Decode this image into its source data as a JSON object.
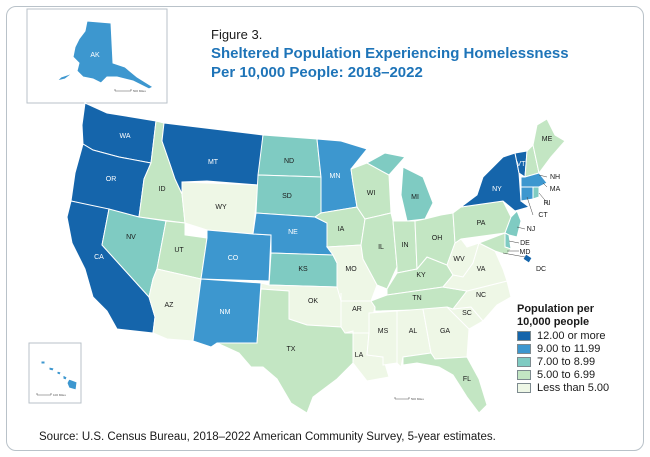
{
  "figure_label": "Figure 3.",
  "title_line1": "Sheltered Population Experiencing Homelessness",
  "title_line2": "Per 10,000 People: 2018–2022",
  "source": "Source: U.S. Census Bureau, 2018–2022 American Community Survey, 5-year estimates.",
  "legend": {
    "title_line1": "Population per",
    "title_line2": "10,000 people",
    "items": [
      {
        "label": "12.00 or more",
        "color": "#1565ab"
      },
      {
        "label": "9.00 to 11.99",
        "color": "#3d97cf"
      },
      {
        "label": "7.00 to 8.99",
        "color": "#7fcbc2"
      },
      {
        "label": "5.00 to 6.99",
        "color": "#c3e6c3"
      },
      {
        "label": "Less than 5.00",
        "color": "#eef7e6"
      }
    ]
  },
  "scale_labels": {
    "alaska": "500 Miles",
    "hawaii": "100 Miles",
    "conus": "500 Miles"
  },
  "states": [
    {
      "abbr": "AK",
      "category": 1
    },
    {
      "abbr": "HI",
      "category": 1
    },
    {
      "abbr": "WA",
      "category": 0
    },
    {
      "abbr": "OR",
      "category": 0
    },
    {
      "abbr": "CA",
      "category": 0
    },
    {
      "abbr": "ID",
      "category": 3
    },
    {
      "abbr": "NV",
      "category": 2
    },
    {
      "abbr": "UT",
      "category": 3
    },
    {
      "abbr": "AZ",
      "category": 4
    },
    {
      "abbr": "MT",
      "category": 0
    },
    {
      "abbr": "WY",
      "category": 4
    },
    {
      "abbr": "CO",
      "category": 1
    },
    {
      "abbr": "NM",
      "category": 1
    },
    {
      "abbr": "ND",
      "category": 2
    },
    {
      "abbr": "SD",
      "category": 2
    },
    {
      "abbr": "NE",
      "category": 1
    },
    {
      "abbr": "KS",
      "category": 2
    },
    {
      "abbr": "OK",
      "category": 4
    },
    {
      "abbr": "TX",
      "category": 3
    },
    {
      "abbr": "MN",
      "category": 1
    },
    {
      "abbr": "IA",
      "category": 3
    },
    {
      "abbr": "MO",
      "category": 4
    },
    {
      "abbr": "AR",
      "category": 4
    },
    {
      "abbr": "LA",
      "category": 4
    },
    {
      "abbr": "WI",
      "category": 3
    },
    {
      "abbr": "IL",
      "category": 3
    },
    {
      "abbr": "MS",
      "category": 4
    },
    {
      "abbr": "MI",
      "category": 2
    },
    {
      "abbr": "IN",
      "category": 3
    },
    {
      "abbr": "KY",
      "category": 3
    },
    {
      "abbr": "TN",
      "category": 3
    },
    {
      "abbr": "AL",
      "category": 4
    },
    {
      "abbr": "OH",
      "category": 3
    },
    {
      "abbr": "WV",
      "category": 4
    },
    {
      "abbr": "GA",
      "category": 4
    },
    {
      "abbr": "FL",
      "category": 3
    },
    {
      "abbr": "SC",
      "category": 4
    },
    {
      "abbr": "NC",
      "category": 4
    },
    {
      "abbr": "VA",
      "category": 4
    },
    {
      "abbr": "PA",
      "category": 3
    },
    {
      "abbr": "NY",
      "category": 0
    },
    {
      "abbr": "VT",
      "category": 0
    },
    {
      "abbr": "NH",
      "category": 3
    },
    {
      "abbr": "ME",
      "category": 3
    },
    {
      "abbr": "MA",
      "category": 1
    },
    {
      "abbr": "CT",
      "category": 1
    },
    {
      "abbr": "RI",
      "category": 2
    },
    {
      "abbr": "NJ",
      "category": 2
    },
    {
      "abbr": "DE",
      "category": 2
    },
    {
      "abbr": "MD",
      "category": 3
    },
    {
      "abbr": "DC",
      "category": 0
    }
  ]
}
